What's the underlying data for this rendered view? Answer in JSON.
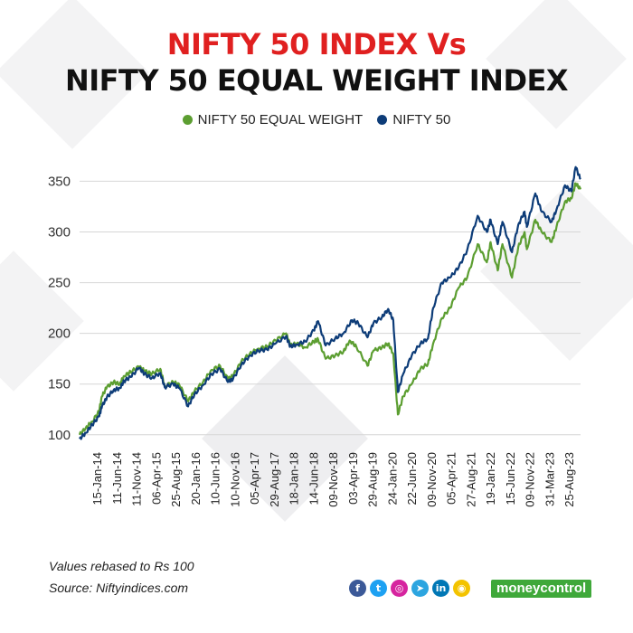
{
  "header": {
    "title_line1": "NIFTY 50 INDEX Vs",
    "title_line2": "NIFTY 50 EQUAL WEIGHT INDEX"
  },
  "footer": {
    "note1": "Values rebased to Rs 100",
    "note2": "Source: Niftyindices.com",
    "brand": "moneycontrol"
  },
  "social_icons": [
    {
      "name": "facebook-icon",
      "glyph": "f",
      "color": "#3b5998"
    },
    {
      "name": "twitter-icon",
      "glyph": "t",
      "color": "#1da1f2"
    },
    {
      "name": "instagram-icon",
      "glyph": "◎",
      "color": "#d6249f"
    },
    {
      "name": "telegram-icon",
      "glyph": "➤",
      "color": "#2ca5e0"
    },
    {
      "name": "linkedin-icon",
      "glyph": "in",
      "color": "#0077b5"
    },
    {
      "name": "snapchat-icon",
      "glyph": "◉",
      "color": "#f3c300"
    }
  ],
  "chart_data": {
    "type": "line",
    "title": "NIFTY 50 INDEX Vs NIFTY 50 EQUAL WEIGHT INDEX",
    "xlabel": "",
    "ylabel": "",
    "ylim": [
      90,
      370
    ],
    "yticks": [
      100,
      150,
      200,
      250,
      300,
      350
    ],
    "x_range": [
      "2014-01-01",
      "2023-10-20"
    ],
    "grid": true,
    "legend_position": "top-center",
    "x_tick_labels": [
      "15-Jan-14",
      "11-Jun-14",
      "11-Nov-14",
      "06-Apr-15",
      "25-Aug-15",
      "20-Jan-16",
      "10-Jun-16",
      "10-Nov-16",
      "05-Apr-17",
      "29-Aug-17",
      "18-Jan-18",
      "14-Jun-18",
      "09-Nov-18",
      "03-Apr-19",
      "29-Aug-19",
      "24-Jan-20",
      "22-Jun-20",
      "09-Nov-20",
      "05-Apr-21",
      "27-Aug-21",
      "19-Jan-22",
      "15-Jun-22",
      "09-Nov-22",
      "31-Mar-23",
      "25-Aug-23"
    ],
    "series": [
      {
        "name": "NIFTY 50 EQUAL WEIGHT",
        "color": "#5c9e31",
        "points": [
          [
            "2014-01-01",
            100
          ],
          [
            "2014-02-15",
            107
          ],
          [
            "2014-04-01",
            113
          ],
          [
            "2014-05-20",
            123
          ],
          [
            "2014-06-10",
            138
          ],
          [
            "2014-07-15",
            147
          ],
          [
            "2014-09-01",
            152
          ],
          [
            "2014-10-15",
            150
          ],
          [
            "2014-11-15",
            158
          ],
          [
            "2015-01-01",
            162
          ],
          [
            "2015-03-01",
            167
          ],
          [
            "2015-04-10",
            163
          ],
          [
            "2015-06-01",
            160
          ],
          [
            "2015-08-01",
            165
          ],
          [
            "2015-09-01",
            148
          ],
          [
            "2015-11-01",
            152
          ],
          [
            "2015-12-15",
            149
          ],
          [
            "2016-02-15",
            133
          ],
          [
            "2016-04-01",
            143
          ],
          [
            "2016-06-01",
            152
          ],
          [
            "2016-08-01",
            164
          ],
          [
            "2016-10-01",
            168
          ],
          [
            "2016-11-25",
            155
          ],
          [
            "2017-01-01",
            158
          ],
          [
            "2017-03-01",
            172
          ],
          [
            "2017-05-01",
            180
          ],
          [
            "2017-07-01",
            185
          ],
          [
            "2017-09-01",
            187
          ],
          [
            "2017-11-01",
            193
          ],
          [
            "2018-01-15",
            200
          ],
          [
            "2018-02-15",
            188
          ],
          [
            "2018-04-01",
            190
          ],
          [
            "2018-06-01",
            186
          ],
          [
            "2018-08-01",
            192
          ],
          [
            "2018-09-01",
            194
          ],
          [
            "2018-10-25",
            175
          ],
          [
            "2019-01-01",
            178
          ],
          [
            "2019-03-01",
            182
          ],
          [
            "2019-04-15",
            193
          ],
          [
            "2019-06-01",
            187
          ],
          [
            "2019-08-20",
            168
          ],
          [
            "2019-10-01",
            183
          ],
          [
            "2019-12-01",
            186
          ],
          [
            "2020-01-15",
            190
          ],
          [
            "2020-02-20",
            180
          ],
          [
            "2020-03-24",
            120
          ],
          [
            "2020-05-01",
            138
          ],
          [
            "2020-07-01",
            150
          ],
          [
            "2020-09-01",
            165
          ],
          [
            "2020-10-25",
            170
          ],
          [
            "2020-12-01",
            190
          ],
          [
            "2021-02-01",
            215
          ],
          [
            "2021-04-01",
            225
          ],
          [
            "2021-06-01",
            245
          ],
          [
            "2021-08-01",
            255
          ],
          [
            "2021-10-15",
            288
          ],
          [
            "2021-12-20",
            270
          ],
          [
            "2022-01-15",
            290
          ],
          [
            "2022-03-07",
            262
          ],
          [
            "2022-04-10",
            288
          ],
          [
            "2022-06-17",
            255
          ],
          [
            "2022-08-01",
            285
          ],
          [
            "2022-09-15",
            300
          ],
          [
            "2022-10-01",
            283
          ],
          [
            "2022-12-01",
            312
          ],
          [
            "2023-01-15",
            300
          ],
          [
            "2023-03-28",
            290
          ],
          [
            "2023-05-01",
            305
          ],
          [
            "2023-07-01",
            330
          ],
          [
            "2023-08-15",
            333
          ],
          [
            "2023-09-15",
            348
          ],
          [
            "2023-10-20",
            342
          ]
        ]
      },
      {
        "name": "NIFTY 50",
        "color": "#0d3c78",
        "points": [
          [
            "2014-01-01",
            96
          ],
          [
            "2014-02-15",
            102
          ],
          [
            "2014-04-01",
            110
          ],
          [
            "2014-05-20",
            118
          ],
          [
            "2014-06-10",
            128
          ],
          [
            "2014-07-15",
            137
          ],
          [
            "2014-09-01",
            144
          ],
          [
            "2014-10-15",
            146
          ],
          [
            "2014-11-15",
            153
          ],
          [
            "2015-01-01",
            157
          ],
          [
            "2015-03-01",
            166
          ],
          [
            "2015-04-10",
            160
          ],
          [
            "2015-06-01",
            156
          ],
          [
            "2015-08-01",
            161
          ],
          [
            "2015-09-01",
            147
          ],
          [
            "2015-11-01",
            150
          ],
          [
            "2015-12-15",
            146
          ],
          [
            "2016-02-15",
            128
          ],
          [
            "2016-04-01",
            140
          ],
          [
            "2016-06-01",
            149
          ],
          [
            "2016-08-01",
            160
          ],
          [
            "2016-10-01",
            165
          ],
          [
            "2016-11-25",
            152
          ],
          [
            "2017-01-01",
            155
          ],
          [
            "2017-03-01",
            169
          ],
          [
            "2017-05-01",
            178
          ],
          [
            "2017-07-01",
            183
          ],
          [
            "2017-09-01",
            184
          ],
          [
            "2017-11-01",
            190
          ],
          [
            "2018-01-15",
            197
          ],
          [
            "2018-02-15",
            187
          ],
          [
            "2018-04-01",
            189
          ],
          [
            "2018-06-01",
            192
          ],
          [
            "2018-08-01",
            203
          ],
          [
            "2018-09-01",
            212
          ],
          [
            "2018-10-25",
            188
          ],
          [
            "2019-01-01",
            195
          ],
          [
            "2019-03-01",
            200
          ],
          [
            "2019-05-01",
            213
          ],
          [
            "2019-06-15",
            210
          ],
          [
            "2019-08-20",
            196
          ],
          [
            "2019-10-01",
            210
          ],
          [
            "2019-12-01",
            216
          ],
          [
            "2020-01-15",
            224
          ],
          [
            "2020-02-20",
            213
          ],
          [
            "2020-03-24",
            142
          ],
          [
            "2020-05-01",
            160
          ],
          [
            "2020-07-01",
            178
          ],
          [
            "2020-09-01",
            190
          ],
          [
            "2020-10-25",
            195
          ],
          [
            "2020-12-01",
            225
          ],
          [
            "2021-02-01",
            250
          ],
          [
            "2021-04-01",
            255
          ],
          [
            "2021-06-01",
            265
          ],
          [
            "2021-08-01",
            282
          ],
          [
            "2021-10-15",
            316
          ],
          [
            "2021-12-20",
            300
          ],
          [
            "2022-01-15",
            312
          ],
          [
            "2022-03-07",
            288
          ],
          [
            "2022-04-10",
            310
          ],
          [
            "2022-06-17",
            280
          ],
          [
            "2022-08-01",
            307
          ],
          [
            "2022-09-15",
            320
          ],
          [
            "2022-10-01",
            305
          ],
          [
            "2022-12-01",
            338
          ],
          [
            "2023-01-15",
            320
          ],
          [
            "2023-03-28",
            310
          ],
          [
            "2023-05-01",
            322
          ],
          [
            "2023-07-01",
            346
          ],
          [
            "2023-08-15",
            340
          ],
          [
            "2023-09-15",
            364
          ],
          [
            "2023-10-20",
            352
          ]
        ]
      }
    ]
  }
}
